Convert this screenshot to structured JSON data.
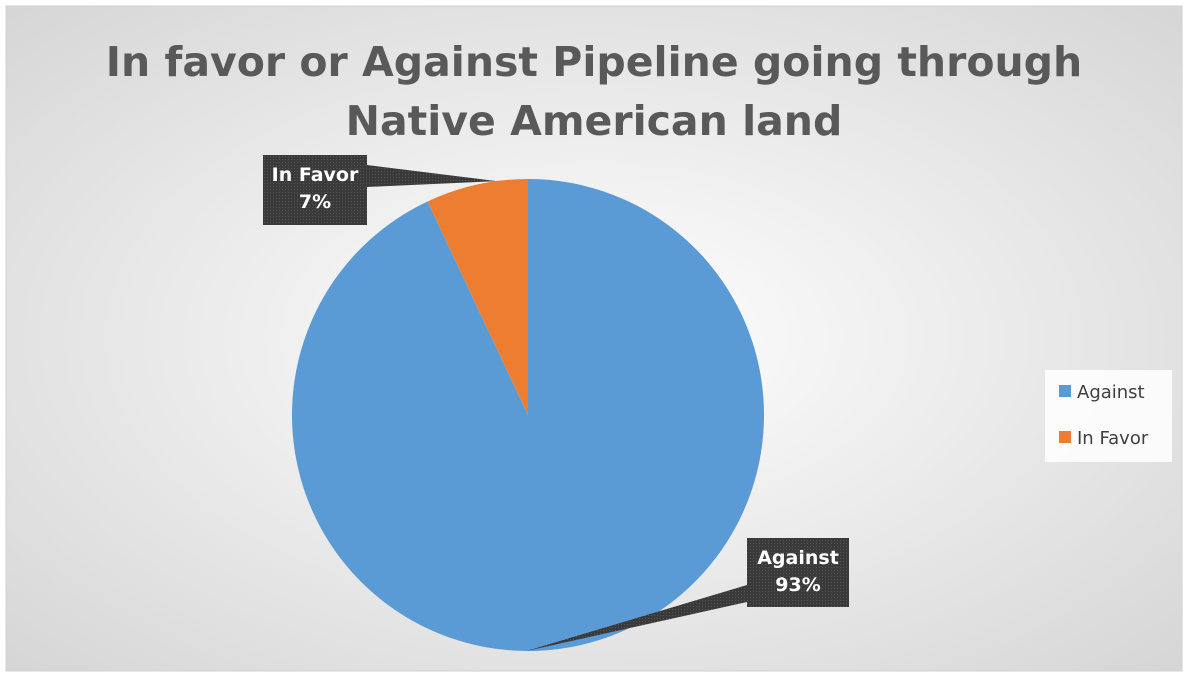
{
  "chart_data": {
    "type": "pie",
    "title_lines": [
      "In favor or Against Pipeline going through",
      "Native American land"
    ],
    "slices": [
      {
        "name": "Against",
        "value": 93,
        "label": "93%",
        "color": "#5B9BD5"
      },
      {
        "name": "In Favor",
        "value": 7,
        "label": "7%",
        "color": "#ED7D31"
      }
    ],
    "legend": {
      "position": "right",
      "entries": [
        "Against",
        "In Favor"
      ]
    },
    "data_labels": true
  },
  "colors": {
    "background_gradient_center": "#ffffff",
    "background_gradient_edge": "#d9d9d9",
    "title": "#595959",
    "label_box": "#404040",
    "label_text": "#ffffff"
  }
}
